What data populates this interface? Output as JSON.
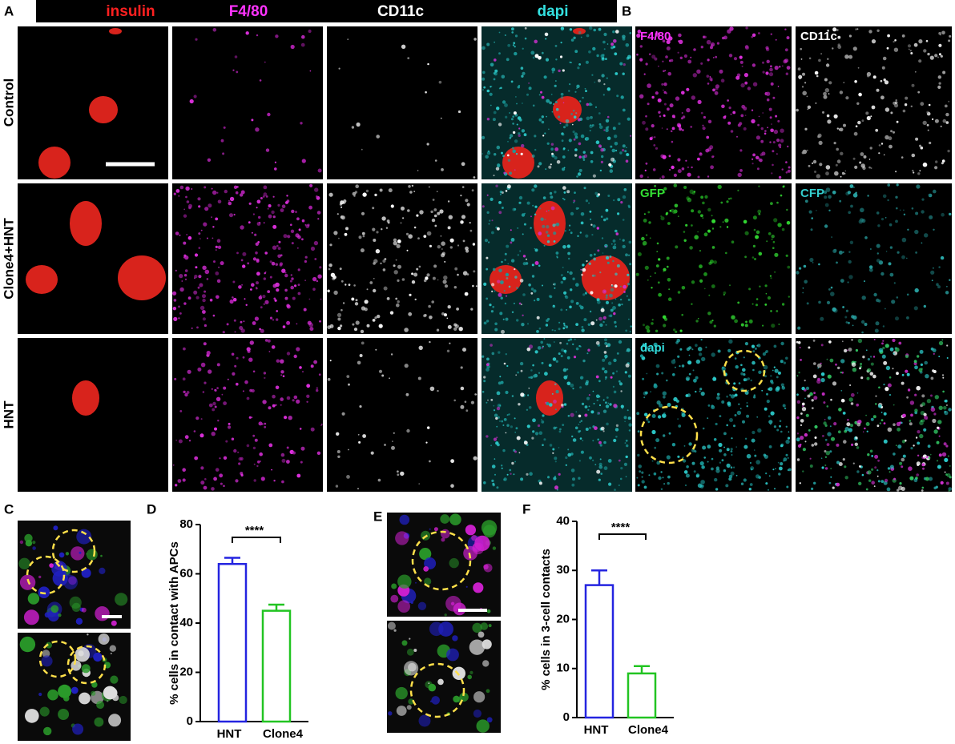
{
  "panel_labels": [
    "A",
    "B",
    "C",
    "D",
    "E",
    "F"
  ],
  "channel_header": [
    "insulin",
    "F4/80",
    "CD11c",
    "dapi"
  ],
  "row_labels": [
    "Control",
    "Clone4+HNT",
    "HNT"
  ],
  "panel_b_labels": [
    "F4/80",
    "CD11c",
    "GFP",
    "CFP",
    "dapi"
  ],
  "chart_data": [
    {
      "type": "bar",
      "ylabel": "% cells in contact with APCs",
      "categories": [
        "HNT",
        "Clone4"
      ],
      "values": [
        64,
        45
      ],
      "errors": [
        2.5,
        2.5
      ],
      "colors": [
        "#2424e0",
        "#22c422"
      ],
      "ylim": [
        0,
        80
      ],
      "yticks": [
        0,
        20,
        40,
        60,
        80
      ],
      "annotation": "****"
    },
    {
      "type": "bar",
      "ylabel": "% cells in 3-cell contacts",
      "categories": [
        "HNT",
        "Clone4"
      ],
      "values": [
        27,
        9
      ],
      "errors": [
        3,
        1.5
      ],
      "colors": [
        "#2424e0",
        "#22c422"
      ],
      "ylim": [
        0,
        40
      ],
      "yticks": [
        0,
        10,
        20,
        30,
        40
      ],
      "annotation": "****"
    }
  ]
}
